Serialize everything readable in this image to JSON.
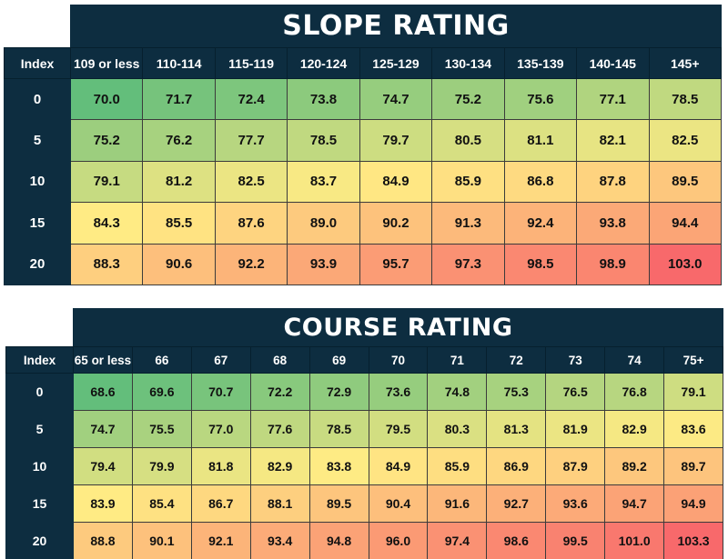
{
  "chart_data": [
    {
      "type": "heatmap",
      "title": "SLOPE RATING",
      "row_header": "Index",
      "rows": [
        "0",
        "5",
        "10",
        "15",
        "20"
      ],
      "categories": [
        "109 or less",
        "110-114",
        "115-119",
        "120-124",
        "125-129",
        "130-134",
        "135-139",
        "140-145",
        "145+"
      ],
      "values": [
        [
          70.0,
          71.7,
          72.4,
          73.8,
          74.7,
          75.2,
          75.6,
          77.1,
          78.5
        ],
        [
          75.2,
          76.2,
          77.7,
          78.5,
          79.7,
          80.5,
          81.1,
          82.1,
          82.5
        ],
        [
          79.1,
          81.2,
          82.5,
          83.7,
          84.9,
          85.9,
          86.8,
          87.8,
          89.5
        ],
        [
          84.3,
          85.5,
          87.6,
          89.0,
          90.2,
          91.3,
          92.4,
          93.8,
          94.4
        ],
        [
          88.3,
          90.6,
          92.2,
          93.9,
          95.7,
          97.3,
          98.5,
          98.9,
          103.0
        ]
      ],
      "value_format": "0.0",
      "color_scale": {
        "low": "#63be7b",
        "mid": "#ffeb84",
        "high": "#f8696b"
      }
    },
    {
      "type": "heatmap",
      "title": "COURSE RATING",
      "row_header": "Index",
      "rows": [
        "0",
        "5",
        "10",
        "15",
        "20"
      ],
      "categories": [
        "65 or less",
        "66",
        "67",
        "68",
        "69",
        "70",
        "71",
        "72",
        "73",
        "74",
        "75+"
      ],
      "values": [
        [
          68.6,
          69.6,
          70.7,
          72.2,
          72.9,
          73.6,
          74.8,
          75.3,
          76.5,
          76.8,
          79.1
        ],
        [
          74.7,
          75.5,
          77.0,
          77.6,
          78.5,
          79.5,
          80.3,
          81.3,
          81.9,
          82.9,
          83.6
        ],
        [
          79.4,
          79.9,
          81.8,
          82.9,
          83.8,
          84.9,
          85.9,
          86.9,
          87.9,
          89.2,
          89.7
        ],
        [
          83.9,
          85.4,
          86.7,
          88.1,
          89.5,
          90.4,
          91.6,
          92.7,
          93.6,
          94.7,
          94.9
        ],
        [
          88.8,
          90.1,
          92.1,
          93.4,
          94.8,
          96.0,
          97.4,
          98.6,
          99.5,
          101.0,
          103.3
        ]
      ],
      "value_format": "0.0",
      "color_scale": {
        "low": "#63be7b",
        "mid": "#ffeb84",
        "high": "#f8696b"
      }
    }
  ]
}
